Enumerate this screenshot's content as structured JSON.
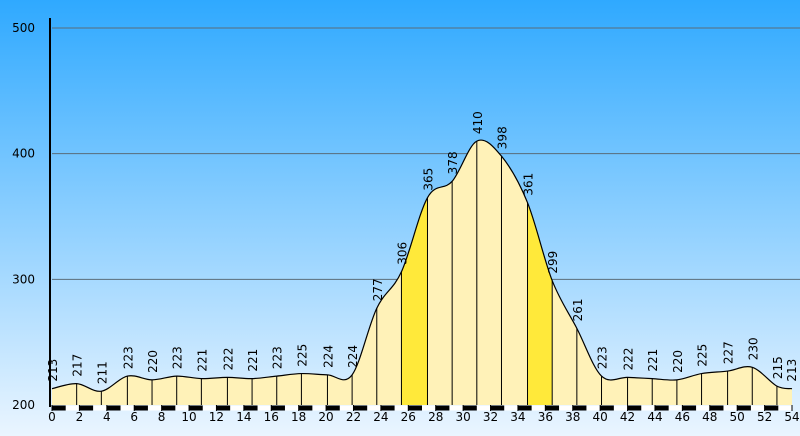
{
  "chart_data": {
    "type": "area",
    "x": [
      0,
      1.8,
      3.6,
      5.5,
      7.3,
      9.1,
      10.9,
      12.8,
      14.6,
      16.4,
      18.2,
      20.1,
      21.9,
      23.7,
      25.5,
      27.4,
      29.2,
      31.0,
      32.8,
      34.7,
      36.5,
      38.3,
      40.1,
      42.0,
      43.8,
      45.6,
      47.4,
      49.3,
      51.1,
      52.9,
      54
    ],
    "values": [
      213,
      217,
      211,
      223,
      220,
      223,
      221,
      222,
      221,
      223,
      225,
      224,
      224,
      277,
      306,
      365,
      378,
      410,
      398,
      361,
      299,
      261,
      223,
      222,
      221,
      220,
      225,
      227,
      230,
      215,
      213
    ],
    "segment_colors": [
      "#fff2b8",
      "#fff2b8",
      "#fff2b8",
      "#fff2b8",
      "#fff2b8",
      "#fff2b8",
      "#fff2b8",
      "#fff2b8",
      "#fff2b8",
      "#fff2b8",
      "#fff2b8",
      "#fff2b8",
      "#fff2b8",
      "#fff2b8",
      "#ffe93a",
      "#fff2b8",
      "#fff2b8",
      "#fff2b8",
      "#fff2b8",
      "#ffe93a",
      "#fff2b8",
      "#fff2b8",
      "#fff2b8",
      "#fff2b8",
      "#fff2b8",
      "#fff2b8",
      "#fff2b8",
      "#fff2b8",
      "#fff2b8",
      "#fff2b8"
    ],
    "xlim": [
      0,
      54
    ],
    "xticks": [
      0,
      2,
      4,
      6,
      8,
      10,
      12,
      14,
      16,
      18,
      20,
      22,
      24,
      26,
      28,
      30,
      32,
      34,
      36,
      38,
      40,
      42,
      44,
      46,
      48,
      50,
      52,
      54
    ],
    "ylim": [
      200,
      500
    ],
    "yticks": [
      200,
      300,
      400,
      500
    ],
    "grid": true
  }
}
